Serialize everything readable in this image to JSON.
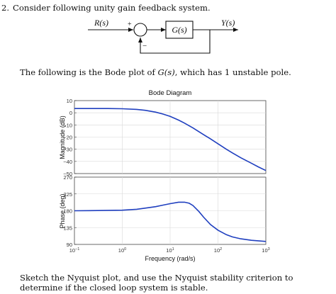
{
  "question": {
    "number": "2.",
    "text": "Consider following unity gain feedback system."
  },
  "block_diagram": {
    "input_label": "R(s)",
    "output_label": "Y(s)",
    "plant_label": "G(s)",
    "plus_sign": "+",
    "minus_sign": "−"
  },
  "intro": {
    "before": "The following is the Bode plot of ",
    "math": "G(s)",
    "after": ", which has 1 unstable pole."
  },
  "chart_data": [
    {
      "type": "line",
      "title": "Bode Diagram",
      "ylabel": "Magnitude (dB)",
      "xlabel": "",
      "xscale": "log",
      "xlim": [
        0.1,
        1000
      ],
      "ylim": [
        -50,
        10
      ],
      "yticks": [
        "10",
        "0",
        "−10",
        "−20",
        "−30",
        "−40",
        "−50"
      ],
      "series": [
        {
          "color": "#1f3fbf",
          "x": [
            0.1,
            0.2,
            0.5,
            1,
            2,
            3,
            5,
            7,
            10,
            15,
            20,
            30,
            50,
            70,
            100,
            150,
            200,
            300,
            500,
            700,
            1000
          ],
          "y": [
            3.5,
            3.5,
            3.5,
            3.3,
            2.8,
            2.0,
            0.5,
            -1.0,
            -3.0,
            -6.0,
            -8.5,
            -12.5,
            -18.0,
            -21.5,
            -25.5,
            -30.0,
            -33.0,
            -37.0,
            -41.5,
            -44.5,
            -47.5
          ]
        }
      ]
    },
    {
      "type": "line",
      "ylabel": "Phase (deg)",
      "xlabel": "Frequency (rad/s)",
      "xscale": "log",
      "xlim": [
        0.1,
        1000
      ],
      "ylim": [
        90,
        270
      ],
      "yticks": [
        "270",
        "225",
        "180",
        "135",
        "90"
      ],
      "xticks": [
        {
          "base": "10",
          "exp": "−1"
        },
        {
          "base": "10",
          "exp": "0"
        },
        {
          "base": "10",
          "exp": "1"
        },
        {
          "base": "10",
          "exp": "2"
        },
        {
          "base": "10",
          "exp": "3"
        }
      ],
      "series": [
        {
          "color": "#1f3fbf",
          "x": [
            0.1,
            0.3,
            1,
            2,
            3,
            5,
            7,
            10,
            15,
            20,
            25,
            30,
            40,
            50,
            70,
            100,
            150,
            200,
            300,
            500,
            1000
          ],
          "y": [
            180,
            180.5,
            181.5,
            184,
            187,
            191,
            195,
            199,
            203,
            203,
            200,
            194,
            178,
            163,
            143,
            128,
            116,
            110,
            105,
            101,
            98
          ]
        }
      ]
    }
  ],
  "footer": {
    "text": "Sketch the Nyquist plot, and use the Nyquist stability criterion to determine if the closed loop system is stable."
  }
}
